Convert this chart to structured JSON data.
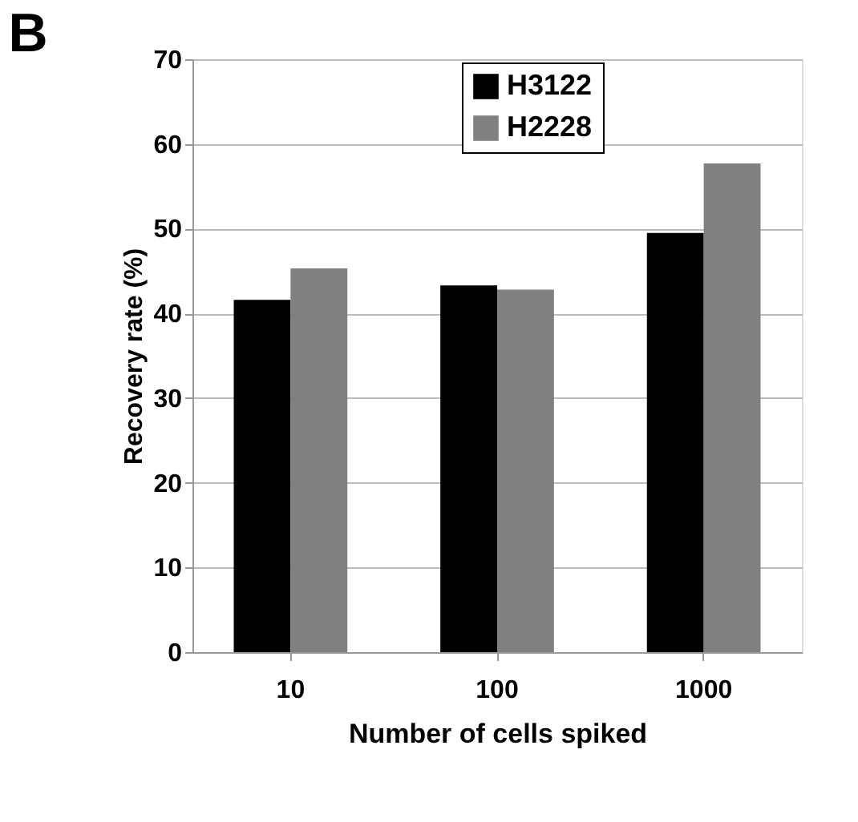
{
  "chart_data": {
    "type": "bar",
    "title": "B",
    "xlabel": "Number of cells spiked",
    "ylabel": "Recovery rate (%)",
    "categories": [
      "10",
      "100",
      "1000"
    ],
    "series": [
      {
        "name": "H3122",
        "color": "#000000",
        "values": [
          41.6,
          43.3,
          49.5
        ]
      },
      {
        "name": "H2228",
        "color": "#808080",
        "values": [
          45.3,
          42.8,
          57.7
        ]
      }
    ],
    "ylim": [
      0,
      70
    ],
    "yticks": [
      0,
      10,
      20,
      30,
      40,
      50,
      60,
      70
    ],
    "grid": "y",
    "legend": "top right"
  }
}
